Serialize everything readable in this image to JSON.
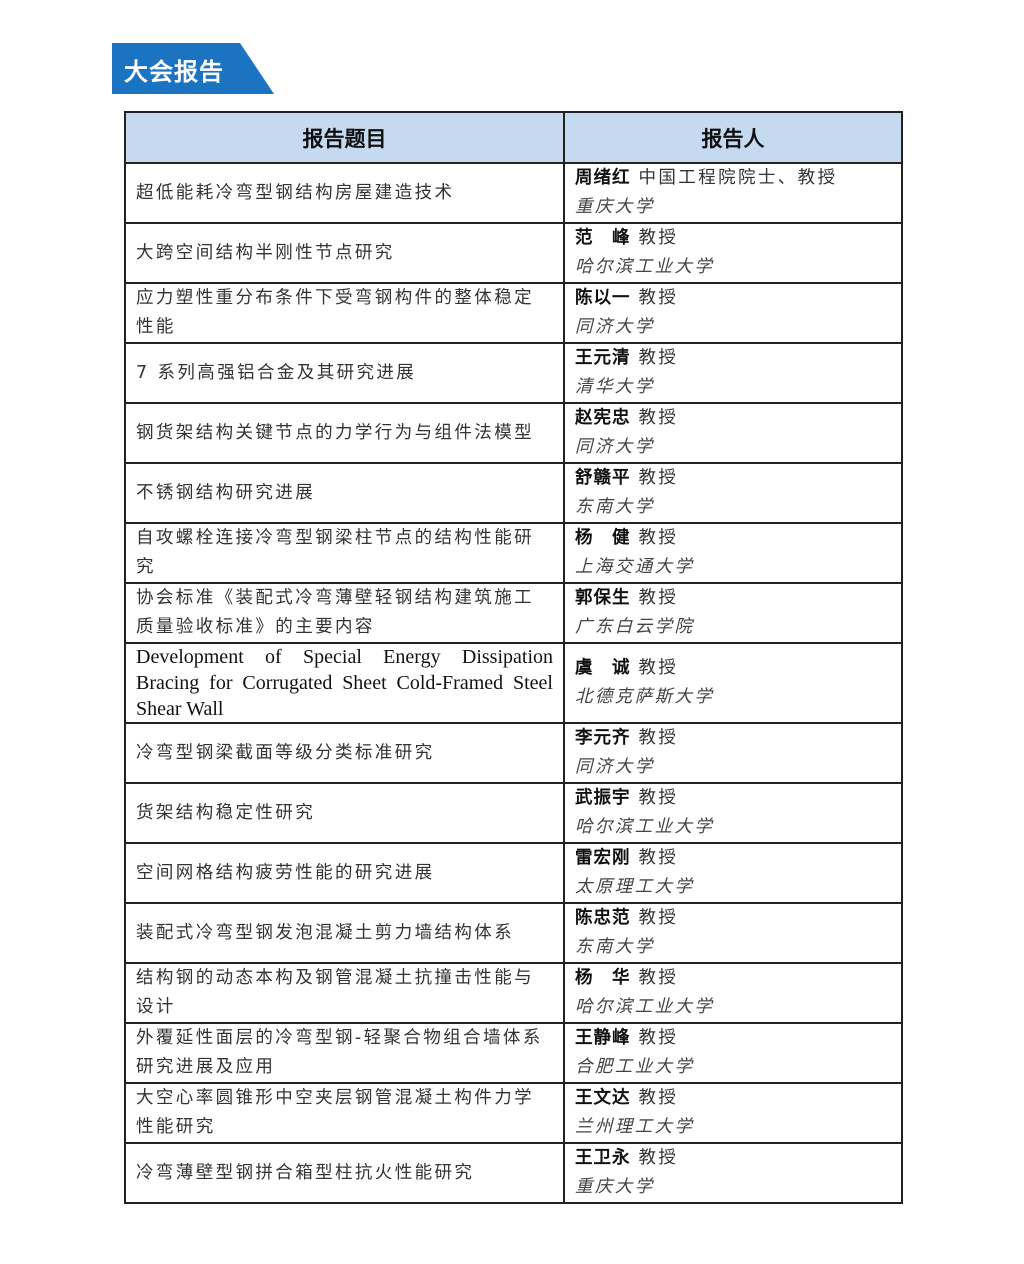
{
  "section_title": "大会报告",
  "colors": {
    "banner": "#1b74c2",
    "header_bg": "#c5d9f1"
  },
  "table": {
    "headers": [
      "报告题目",
      "报告人"
    ],
    "rows": [
      {
        "topic": "超低能耗冷弯型钢结构房屋建造技术",
        "name": "周绪红",
        "title": "中国工程院院士、教授",
        "affiliation": "重庆大学"
      },
      {
        "topic": "大跨空间结构半刚性节点研究",
        "name": "范　峰",
        "title": "教授",
        "affiliation": "哈尔滨工业大学"
      },
      {
        "topic": "应力塑性重分布条件下受弯钢构件的整体稳定性能",
        "name": "陈以一",
        "title": "教授",
        "affiliation": "同济大学"
      },
      {
        "topic": "7 系列高强铝合金及其研究进展",
        "name": "王元清",
        "title": "教授",
        "affiliation": "清华大学"
      },
      {
        "topic": "钢货架结构关键节点的力学行为与组件法模型",
        "name": "赵宪忠",
        "title": "教授",
        "affiliation": "同济大学"
      },
      {
        "topic": "不锈钢结构研究进展",
        "name": "舒赣平",
        "title": "教授",
        "affiliation": "东南大学"
      },
      {
        "topic": "自攻螺栓连接冷弯型钢梁柱节点的结构性能研究",
        "name": "杨　健",
        "title": "教授",
        "affiliation": "上海交通大学"
      },
      {
        "topic": "协会标准《装配式冷弯薄壁轻钢结构建筑施工质量验收标准》的主要内容",
        "name": "郭保生",
        "title": "教授",
        "affiliation": "广东白云学院"
      },
      {
        "topic": "Development of Special Energy Dissipation Bracing for Corrugated Sheet  Cold-Framed Steel Shear Wall",
        "name": "虞　诚",
        "title": "教授",
        "affiliation": "北德克萨斯大学"
      },
      {
        "topic": "冷弯型钢梁截面等级分类标准研究",
        "name": "李元齐",
        "title": "教授",
        "affiliation": "同济大学"
      },
      {
        "topic": "货架结构稳定性研究",
        "name": "武振宇",
        "title": "教授",
        "affiliation": "哈尔滨工业大学"
      },
      {
        "topic": "空间网格结构疲劳性能的研究进展",
        "name": "雷宏刚",
        "title": "教授",
        "affiliation": "太原理工大学"
      },
      {
        "topic": "装配式冷弯型钢发泡混凝土剪力墙结构体系",
        "name": "陈忠范",
        "title": "教授",
        "affiliation": "东南大学"
      },
      {
        "topic": "结构钢的动态本构及钢管混凝土抗撞击性能与设计",
        "name": "杨　华",
        "title": "教授",
        "affiliation": "哈尔滨工业大学"
      },
      {
        "topic": "外覆延性面层的冷弯型钢-轻聚合物组合墙体系研究进展及应用",
        "name": "王静峰",
        "title": "教授",
        "affiliation": "合肥工业大学"
      },
      {
        "topic": "大空心率圆锥形中空夹层钢管混凝土构件力学性能研究",
        "name": "王文达",
        "title": "教授",
        "affiliation": "兰州理工大学"
      },
      {
        "topic": "冷弯薄壁型钢拼合箱型柱抗火性能研究",
        "name": "王卫永",
        "title": "教授",
        "affiliation": "重庆大学"
      }
    ]
  }
}
